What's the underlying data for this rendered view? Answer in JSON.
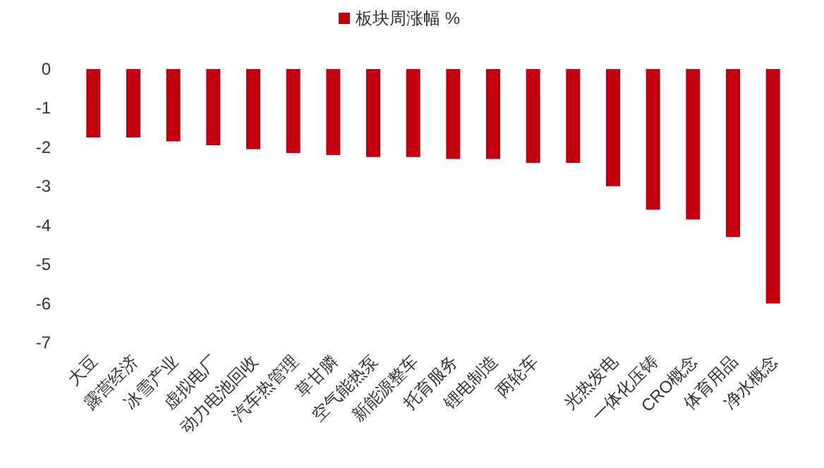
{
  "chart_data": {
    "type": "bar",
    "categories": [
      "大豆",
      "露营经济",
      "冰雪产业",
      "虚拟电厂",
      "动力电池回收",
      "汽车热管理",
      "草甘膦",
      "空气能热泵",
      "新能源整车",
      "托育服务",
      "锂电制造",
      "两轮车",
      null,
      "光热发电",
      "一体化压铸",
      "CRO概念",
      "体育用品",
      "净水概念"
    ],
    "series": [
      {
        "name": "板块周涨幅 %",
        "color": "#c0000f",
        "values": [
          -1.75,
          -1.75,
          -1.85,
          -1.95,
          -2.05,
          -2.15,
          -2.2,
          -2.25,
          -2.25,
          -2.3,
          -2.3,
          -2.4,
          -2.4,
          -3.0,
          -3.6,
          -3.85,
          -4.3,
          -6.0
        ]
      }
    ],
    "ylim": [
      -7,
      0
    ],
    "yticks": [
      0,
      -1,
      -2,
      -3,
      -4,
      -5,
      -6,
      -7
    ],
    "legend": "top"
  }
}
